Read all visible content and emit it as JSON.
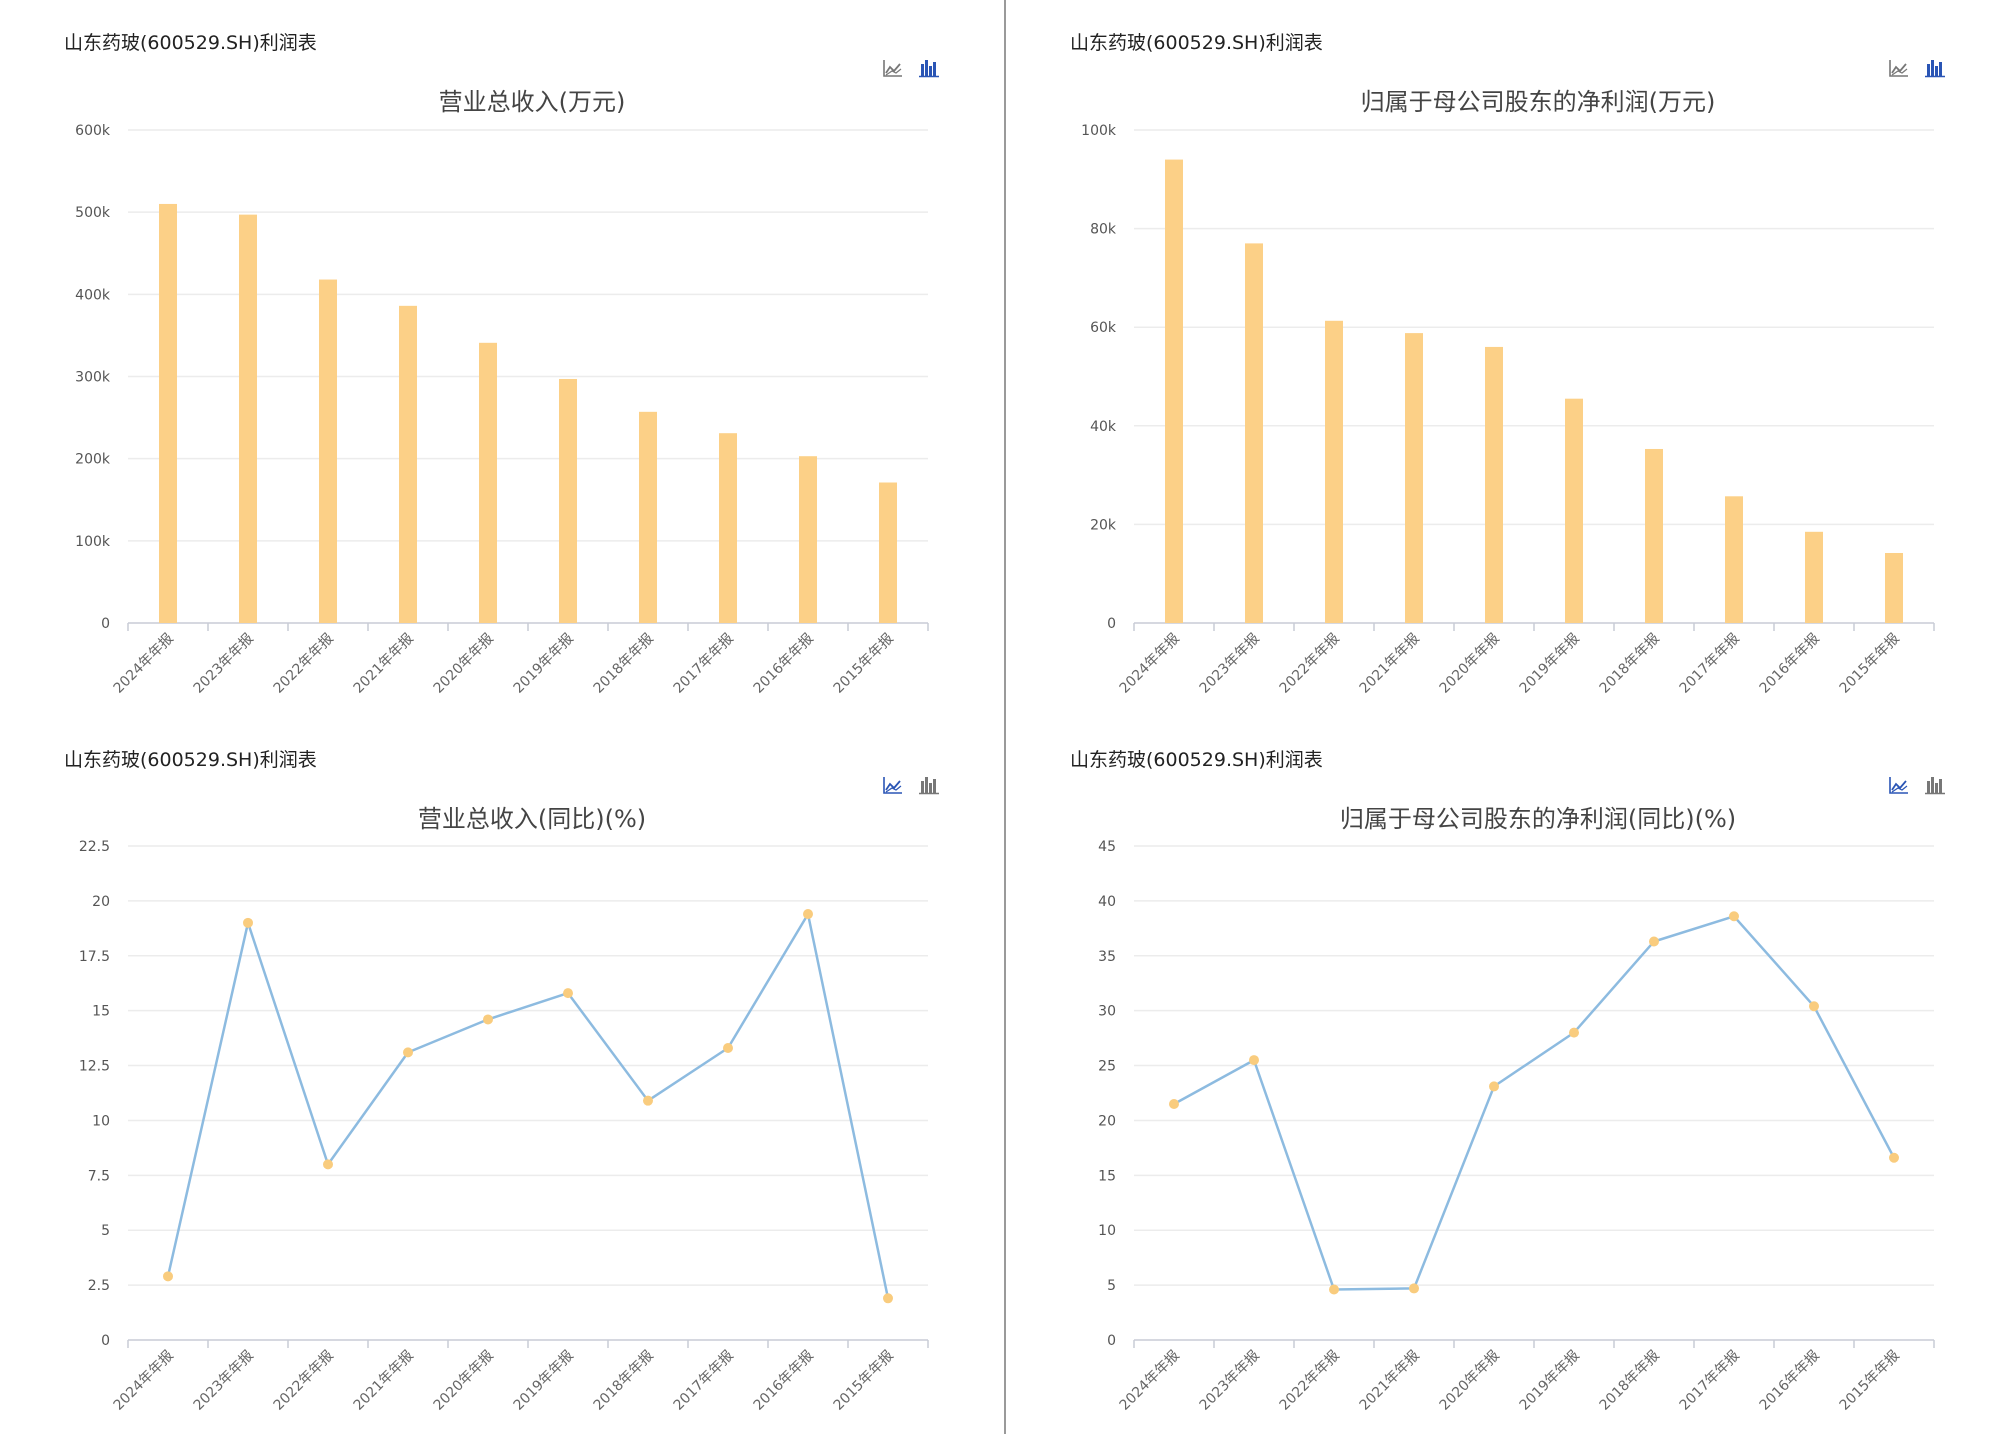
{
  "panels": [
    {
      "header": "山东药玻(600529.SH)利润表",
      "toolbar": {
        "line_icon": "line-chart-icon",
        "bar_icon": "bar-chart-icon",
        "active": "bar"
      }
    },
    {
      "header": "山东药玻(600529.SH)利润表",
      "toolbar": {
        "line_icon": "line-chart-icon",
        "bar_icon": "bar-chart-icon",
        "active": "bar"
      }
    },
    {
      "header": "山东药玻(600529.SH)利润表",
      "toolbar": {
        "line_icon": "line-chart-icon",
        "bar_icon": "bar-chart-icon",
        "active": "line"
      }
    },
    {
      "header": "山东药玻(600529.SH)利润表",
      "toolbar": {
        "line_icon": "line-chart-icon",
        "bar_icon": "bar-chart-icon",
        "active": "line"
      }
    }
  ],
  "colors": {
    "bar": "#fcd087",
    "line": "#8dbbe0",
    "point": "#f9cc7e",
    "grid": "#ececec",
    "axis": "#c8ccd6",
    "icon_active": "#2a55b5",
    "icon_inactive": "#777777"
  },
  "chart_data": [
    {
      "type": "bar",
      "title": "营业总收入(万元)",
      "categories": [
        "2024年年报",
        "2023年年报",
        "2022年年报",
        "2021年年报",
        "2020年年报",
        "2019年年报",
        "2018年年报",
        "2017年年报",
        "2016年年报",
        "2015年年报"
      ],
      "values": [
        510000,
        497000,
        418000,
        386000,
        341000,
        297000,
        257000,
        231000,
        203000,
        171000
      ],
      "ylim": [
        0,
        600000
      ],
      "yticks": [
        0,
        100000,
        200000,
        300000,
        400000,
        500000,
        600000
      ],
      "ytick_labels": [
        "0",
        "100k",
        "200k",
        "300k",
        "400k",
        "500k",
        "600k"
      ],
      "grid": true
    },
    {
      "type": "bar",
      "title": "归属于母公司股东的净利润(万元)",
      "categories": [
        "2024年年报",
        "2023年年报",
        "2022年年报",
        "2021年年报",
        "2020年年报",
        "2019年年报",
        "2018年年报",
        "2017年年报",
        "2016年年报",
        "2015年年报"
      ],
      "values": [
        94000,
        77000,
        61300,
        58800,
        56000,
        45500,
        35300,
        25700,
        18500,
        14200
      ],
      "ylim": [
        0,
        100000
      ],
      "yticks": [
        0,
        20000,
        40000,
        60000,
        80000,
        100000
      ],
      "ytick_labels": [
        "0",
        "20k",
        "40k",
        "60k",
        "80k",
        "100k"
      ],
      "grid": true
    },
    {
      "type": "line",
      "title": "营业总收入(同比)(%)",
      "categories": [
        "2024年年报",
        "2023年年报",
        "2022年年报",
        "2021年年报",
        "2020年年报",
        "2019年年报",
        "2018年年报",
        "2017年年报",
        "2016年年报",
        "2015年年报"
      ],
      "values": [
        2.9,
        19.0,
        8.0,
        13.1,
        14.6,
        15.8,
        10.9,
        13.3,
        19.4,
        1.9
      ],
      "ylim": [
        0,
        22.5
      ],
      "yticks": [
        0,
        2.5,
        5,
        7.5,
        10,
        12.5,
        15,
        17.5,
        20,
        22.5
      ],
      "ytick_labels": [
        "0",
        "2.5",
        "5",
        "7.5",
        "10",
        "12.5",
        "15",
        "17.5",
        "20",
        "22.5"
      ],
      "grid": true
    },
    {
      "type": "line",
      "title": "归属于母公司股东的净利润(同比)(%)",
      "categories": [
        "2024年年报",
        "2023年年报",
        "2022年年报",
        "2021年年报",
        "2020年年报",
        "2019年年报",
        "2018年年报",
        "2017年年报",
        "2016年年报",
        "2015年年报"
      ],
      "values": [
        21.5,
        25.5,
        4.6,
        4.7,
        23.1,
        28.0,
        36.3,
        38.6,
        30.4,
        16.6
      ],
      "ylim": [
        0,
        45
      ],
      "yticks": [
        0,
        5,
        10,
        15,
        20,
        25,
        30,
        35,
        40,
        45
      ],
      "ytick_labels": [
        "0",
        "5",
        "10",
        "15",
        "20",
        "25",
        "30",
        "35",
        "40",
        "45"
      ],
      "grid": true
    }
  ]
}
